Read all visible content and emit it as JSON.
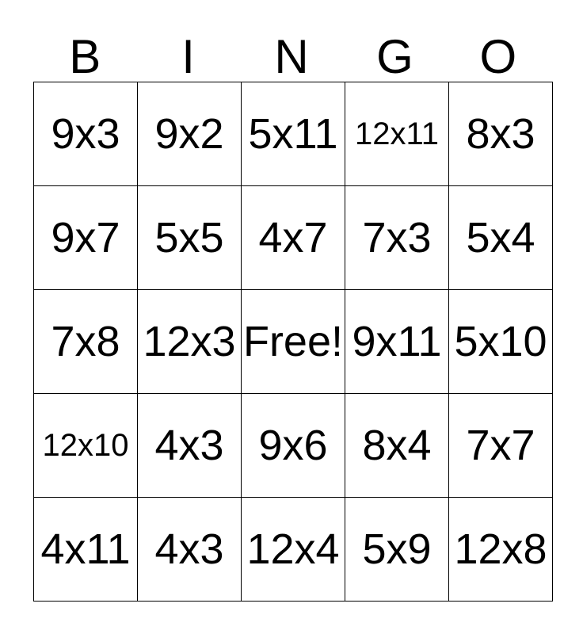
{
  "card": {
    "header_letters": [
      "B",
      "I",
      "N",
      "G",
      "O"
    ],
    "rows": [
      [
        "9x3",
        "9x2",
        "5x11",
        "12x11",
        "8x3"
      ],
      [
        "9x7",
        "5x5",
        "4x7",
        "7x3",
        "5x4"
      ],
      [
        "7x8",
        "12x3",
        "Free!",
        "9x11",
        "5x10"
      ],
      [
        "12x10",
        "4x3",
        "9x6",
        "8x4",
        "7x7"
      ],
      [
        "4x11",
        "4x3",
        "12x4",
        "5x9",
        "12x8"
      ]
    ],
    "colors": {
      "text": "#000000",
      "border": "#000000",
      "background": "#ffffff"
    }
  }
}
